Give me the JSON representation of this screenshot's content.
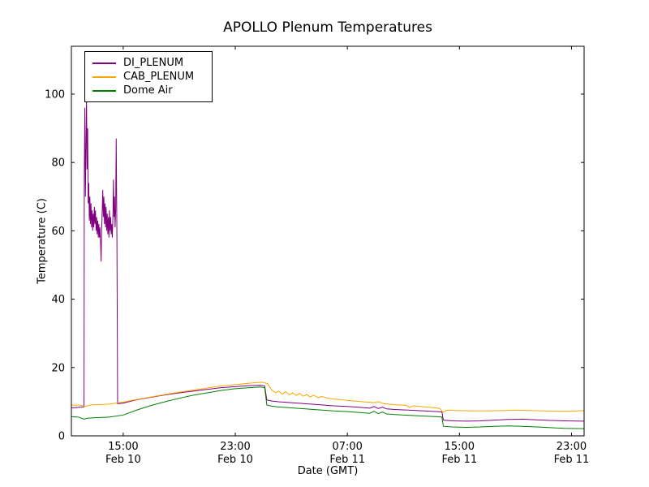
{
  "chart_data": {
    "type": "line",
    "title": "APOLLO Plenum Temperatures",
    "xlabel": "Date (GMT)",
    "ylabel": "Temperature (C)",
    "x_unit": "hours since Feb 10 00:00 GMT",
    "xlim": [
      11.3,
      47.9
    ],
    "ylim": [
      0,
      114
    ],
    "y_ticks": [
      0,
      20,
      40,
      60,
      80,
      100
    ],
    "x_ticks": [
      {
        "value": 15,
        "line1": "15:00",
        "line2": "Feb 10"
      },
      {
        "value": 23,
        "line1": "23:00",
        "line2": "Feb 10"
      },
      {
        "value": 31,
        "line1": "07:00",
        "line2": "Feb 11"
      },
      {
        "value": 39,
        "line1": "15:00",
        "line2": "Feb 11"
      },
      {
        "value": 47,
        "line1": "23:00",
        "line2": "Feb 11"
      }
    ],
    "grid": false,
    "legend_position": "upper left",
    "background": "#ffffff",
    "axis_color": "#000000",
    "series": [
      {
        "name": "DI_PLENUM",
        "color": "#800080",
        "points": [
          [
            11.3,
            8.2
          ],
          [
            11.7,
            8.3
          ],
          [
            12.0,
            8.4
          ],
          [
            12.15,
            8.5
          ],
          [
            12.2,
            8.5
          ],
          [
            12.22,
            75
          ],
          [
            12.26,
            96
          ],
          [
            12.3,
            70
          ],
          [
            12.34,
            84
          ],
          [
            12.38,
            99
          ],
          [
            12.42,
            78
          ],
          [
            12.46,
            90
          ],
          [
            12.5,
            68
          ],
          [
            12.54,
            74
          ],
          [
            12.58,
            63
          ],
          [
            12.62,
            70
          ],
          [
            12.66,
            62
          ],
          [
            12.7,
            68
          ],
          [
            12.74,
            61
          ],
          [
            12.78,
            66
          ],
          [
            12.82,
            60
          ],
          [
            12.86,
            65
          ],
          [
            12.9,
            61
          ],
          [
            12.94,
            67
          ],
          [
            12.98,
            62
          ],
          [
            13.02,
            66
          ],
          [
            13.06,
            60
          ],
          [
            13.1,
            64
          ],
          [
            13.14,
            59
          ],
          [
            13.18,
            63
          ],
          [
            13.22,
            58
          ],
          [
            13.26,
            62
          ],
          [
            13.3,
            58
          ],
          [
            13.34,
            61
          ],
          [
            13.38,
            57
          ],
          [
            13.42,
            51
          ],
          [
            13.46,
            60
          ],
          [
            13.5,
            66
          ],
          [
            13.54,
            72
          ],
          [
            13.58,
            64
          ],
          [
            13.62,
            70
          ],
          [
            13.66,
            62
          ],
          [
            13.7,
            68
          ],
          [
            13.74,
            61
          ],
          [
            13.78,
            67
          ],
          [
            13.82,
            60
          ],
          [
            13.86,
            65
          ],
          [
            13.9,
            59
          ],
          [
            13.94,
            64
          ],
          [
            13.98,
            58
          ],
          [
            14.02,
            66
          ],
          [
            14.06,
            60
          ],
          [
            14.1,
            64
          ],
          [
            14.14,
            59
          ],
          [
            14.18,
            62
          ],
          [
            14.22,
            58
          ],
          [
            14.26,
            63
          ],
          [
            14.3,
            75
          ],
          [
            14.34,
            64
          ],
          [
            14.38,
            70
          ],
          [
            14.42,
            61
          ],
          [
            14.46,
            66
          ],
          [
            14.5,
            87
          ],
          [
            14.55,
            58
          ],
          [
            14.6,
            9.4
          ],
          [
            15,
            9.6
          ],
          [
            16,
            10.6
          ],
          [
            17,
            11.3
          ],
          [
            18,
            12.0
          ],
          [
            19,
            12.6
          ],
          [
            20,
            13.1
          ],
          [
            21,
            13.6
          ],
          [
            22,
            14.1
          ],
          [
            23,
            14.4
          ],
          [
            24,
            14.7
          ],
          [
            24.8,
            14.8
          ],
          [
            25.1,
            14.6
          ],
          [
            25.25,
            10.5
          ],
          [
            25.6,
            10.2
          ],
          [
            26,
            10.0
          ],
          [
            27,
            9.7
          ],
          [
            28,
            9.4
          ],
          [
            29,
            9.1
          ],
          [
            30,
            8.8
          ],
          [
            31,
            8.6
          ],
          [
            32,
            8.3
          ],
          [
            32.6,
            8.1
          ],
          [
            32.9,
            8.6
          ],
          [
            33.2,
            8.0
          ],
          [
            33.5,
            8.4
          ],
          [
            33.8,
            7.9
          ],
          [
            34.5,
            7.7
          ],
          [
            35.5,
            7.5
          ],
          [
            36.5,
            7.3
          ],
          [
            37.4,
            7.1
          ],
          [
            37.75,
            7.0
          ],
          [
            37.85,
            4.6
          ],
          [
            38.5,
            4.4
          ],
          [
            39.5,
            4.3
          ],
          [
            40.5,
            4.4
          ],
          [
            41.5,
            4.6
          ],
          [
            42.5,
            4.8
          ],
          [
            43.5,
            4.9
          ],
          [
            44.5,
            4.7
          ],
          [
            45.5,
            4.5
          ],
          [
            46.5,
            4.4
          ],
          [
            47.9,
            4.3
          ]
        ]
      },
      {
        "name": "CAB_PLENUM",
        "color": "#ffa500",
        "points": [
          [
            11.3,
            9.0
          ],
          [
            12,
            9.0
          ],
          [
            12.3,
            8.6
          ],
          [
            12.6,
            9.0
          ],
          [
            13,
            9.1
          ],
          [
            14,
            9.3
          ],
          [
            15,
            9.9
          ],
          [
            16,
            10.7
          ],
          [
            17,
            11.4
          ],
          [
            18,
            12.1
          ],
          [
            19,
            12.8
          ],
          [
            20,
            13.4
          ],
          [
            21,
            14.0
          ],
          [
            22,
            14.6
          ],
          [
            23,
            15.0
          ],
          [
            24,
            15.4
          ],
          [
            24.9,
            15.7
          ],
          [
            25.3,
            15.3
          ],
          [
            25.6,
            13.4
          ],
          [
            25.9,
            12.6
          ],
          [
            26.1,
            13.1
          ],
          [
            26.35,
            12.2
          ],
          [
            26.6,
            12.9
          ],
          [
            26.85,
            12.0
          ],
          [
            27.1,
            12.6
          ],
          [
            27.35,
            11.8
          ],
          [
            27.6,
            12.4
          ],
          [
            27.85,
            11.6
          ],
          [
            28.1,
            12.1
          ],
          [
            28.35,
            11.4
          ],
          [
            28.6,
            11.9
          ],
          [
            28.9,
            11.2
          ],
          [
            29.2,
            11.5
          ],
          [
            29.6,
            11.0
          ],
          [
            30,
            10.8
          ],
          [
            31,
            10.4
          ],
          [
            32,
            10.0
          ],
          [
            32.9,
            9.7
          ],
          [
            33.2,
            10.0
          ],
          [
            33.6,
            9.4
          ],
          [
            34.5,
            9.1
          ],
          [
            35.2,
            8.9
          ],
          [
            35.45,
            8.3
          ],
          [
            35.7,
            8.8
          ],
          [
            36.5,
            8.5
          ],
          [
            37.3,
            8.2
          ],
          [
            37.6,
            8.0
          ],
          [
            37.85,
            6.9
          ],
          [
            38.1,
            7.5
          ],
          [
            39,
            7.4
          ],
          [
            40,
            7.3
          ],
          [
            41,
            7.3
          ],
          [
            42,
            7.4
          ],
          [
            43,
            7.5
          ],
          [
            44,
            7.4
          ],
          [
            45,
            7.3
          ],
          [
            46,
            7.2
          ],
          [
            47,
            7.2
          ],
          [
            47.9,
            7.4
          ]
        ]
      },
      {
        "name": "Dome Air",
        "color": "#007f00",
        "points": [
          [
            11.3,
            5.6
          ],
          [
            11.8,
            5.5
          ],
          [
            12.2,
            4.9
          ],
          [
            12.5,
            5.2
          ],
          [
            13,
            5.3
          ],
          [
            14,
            5.5
          ],
          [
            15,
            6.1
          ],
          [
            16,
            7.6
          ],
          [
            17,
            8.9
          ],
          [
            18,
            10.0
          ],
          [
            19,
            11.0
          ],
          [
            20,
            11.9
          ],
          [
            21,
            12.6
          ],
          [
            22,
            13.3
          ],
          [
            23,
            13.8
          ],
          [
            24,
            14.1
          ],
          [
            24.8,
            14.3
          ],
          [
            25.1,
            14.1
          ],
          [
            25.25,
            9.0
          ],
          [
            25.6,
            8.7
          ],
          [
            26,
            8.5
          ],
          [
            27,
            8.2
          ],
          [
            28,
            7.9
          ],
          [
            29,
            7.6
          ],
          [
            30,
            7.3
          ],
          [
            31,
            7.1
          ],
          [
            32,
            6.8
          ],
          [
            32.6,
            6.6
          ],
          [
            32.9,
            7.2
          ],
          [
            33.2,
            6.5
          ],
          [
            33.5,
            7.0
          ],
          [
            33.8,
            6.4
          ],
          [
            34.5,
            6.2
          ],
          [
            35.5,
            6.0
          ],
          [
            36.5,
            5.8
          ],
          [
            37.4,
            5.6
          ],
          [
            37.75,
            5.5
          ],
          [
            37.85,
            2.8
          ],
          [
            38.5,
            2.6
          ],
          [
            39.5,
            2.5
          ],
          [
            40.5,
            2.6
          ],
          [
            41.5,
            2.8
          ],
          [
            42.5,
            2.9
          ],
          [
            43.5,
            2.8
          ],
          [
            44.5,
            2.6
          ],
          [
            45.5,
            2.4
          ],
          [
            46.5,
            2.2
          ],
          [
            47.9,
            2.1
          ]
        ]
      }
    ]
  }
}
